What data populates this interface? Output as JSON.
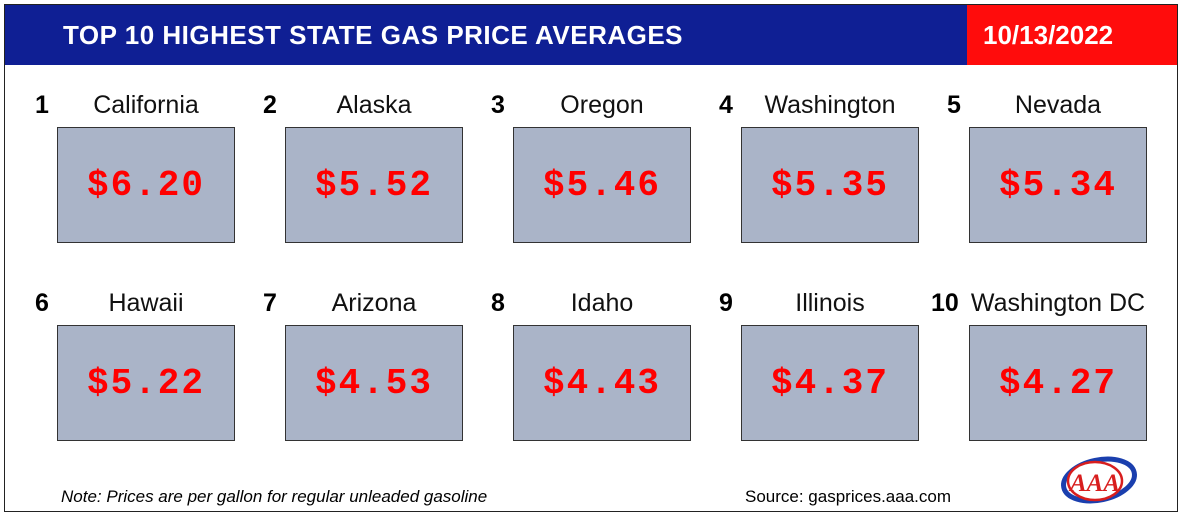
{
  "header": {
    "title": "TOP 10 HIGHEST STATE GAS PRICE AVERAGES",
    "date": "10/13/2022"
  },
  "items": [
    {
      "rank": "1",
      "state": "California",
      "price": "$6.20"
    },
    {
      "rank": "2",
      "state": "Alaska",
      "price": "$5.52"
    },
    {
      "rank": "3",
      "state": "Oregon",
      "price": "$5.46"
    },
    {
      "rank": "4",
      "state": "Washington",
      "price": "$5.35"
    },
    {
      "rank": "5",
      "state": "Nevada",
      "price": "$5.34"
    },
    {
      "rank": "6",
      "state": "Hawaii",
      "price": "$5.22"
    },
    {
      "rank": "7",
      "state": "Arizona",
      "price": "$4.53"
    },
    {
      "rank": "8",
      "state": "Idaho",
      "price": "$4.43"
    },
    {
      "rank": "9",
      "state": "Illinois",
      "price": "$4.37"
    },
    {
      "rank": "10",
      "state": "Washington DC",
      "price": "$4.27"
    }
  ],
  "footer": {
    "note": "Note: Prices are per gallon for regular unleaded gasoline",
    "source": "Source: gasprices.aaa.com",
    "logo_text": "AAA"
  },
  "colors": {
    "header_bg": "#0f1f94",
    "date_bg": "#ff0c0c",
    "price_box": "#aab4c8",
    "price_text": "#ff0000"
  }
}
